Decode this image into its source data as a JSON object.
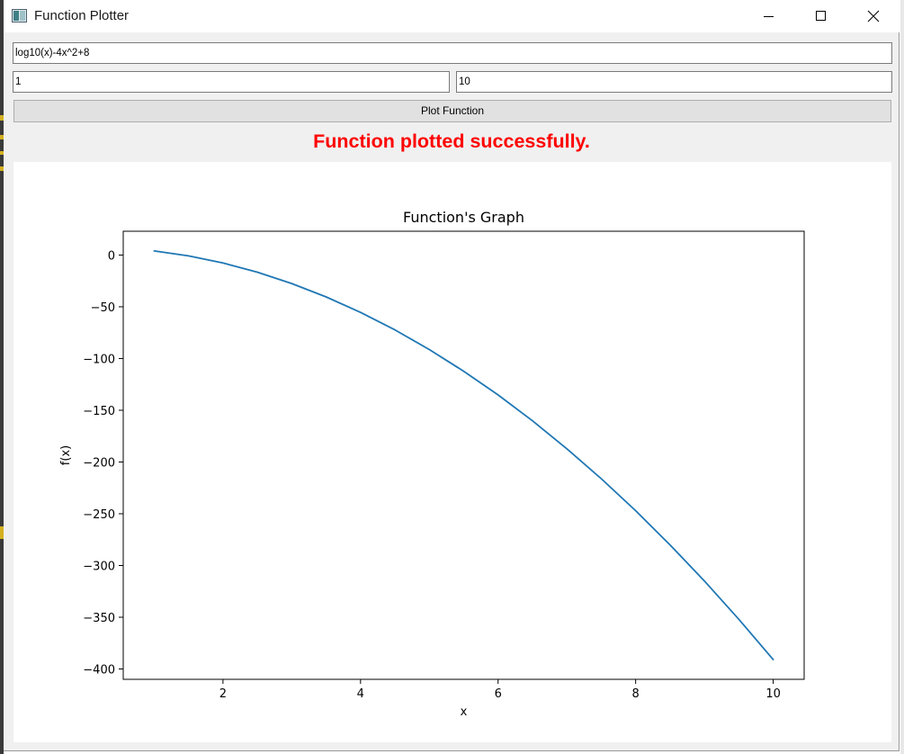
{
  "window": {
    "title": "Function Plotter",
    "icon": "app-window-icon"
  },
  "controls": {
    "function_input": {
      "value": "log10(x)-4x^2+8",
      "placeholder": ""
    },
    "x_min_input": {
      "value": "1",
      "placeholder": ""
    },
    "x_max_input": {
      "value": "10",
      "placeholder": ""
    },
    "plot_button_label": "Plot Function"
  },
  "status": {
    "message": "Function plotted successfully.",
    "color": "#ff0000"
  },
  "chart_data": {
    "type": "line",
    "title": "Function's Graph",
    "xlabel": "x",
    "ylabel": "f(x)",
    "xlim": [
      0.55,
      10.45
    ],
    "ylim": [
      -410,
      23
    ],
    "xticks": [
      2,
      4,
      6,
      8,
      10
    ],
    "xtick_labels": [
      "2",
      "4",
      "6",
      "8",
      "10"
    ],
    "yticks": [
      0,
      -50,
      -100,
      -150,
      -200,
      -250,
      -300,
      -350,
      -400
    ],
    "ytick_labels": [
      "0",
      "−50",
      "−100",
      "−150",
      "−200",
      "−250",
      "−300",
      "−350",
      "−400"
    ],
    "grid": false,
    "series": [
      {
        "color": "#1f77b4",
        "x": [
          1,
          1.5,
          2,
          2.5,
          3,
          3.5,
          4,
          4.5,
          5,
          5.5,
          6,
          6.5,
          7,
          7.5,
          8,
          8.5,
          9,
          9.5,
          10
        ],
        "y": [
          4,
          -0.82,
          -7.7,
          -16.6,
          -27.5,
          -40.5,
          -55.4,
          -72.3,
          -91.3,
          -112.3,
          -135.2,
          -160.2,
          -187.2,
          -216.1,
          -247.1,
          -280.1,
          -315.0,
          -352.0,
          -391.0
        ]
      }
    ]
  }
}
